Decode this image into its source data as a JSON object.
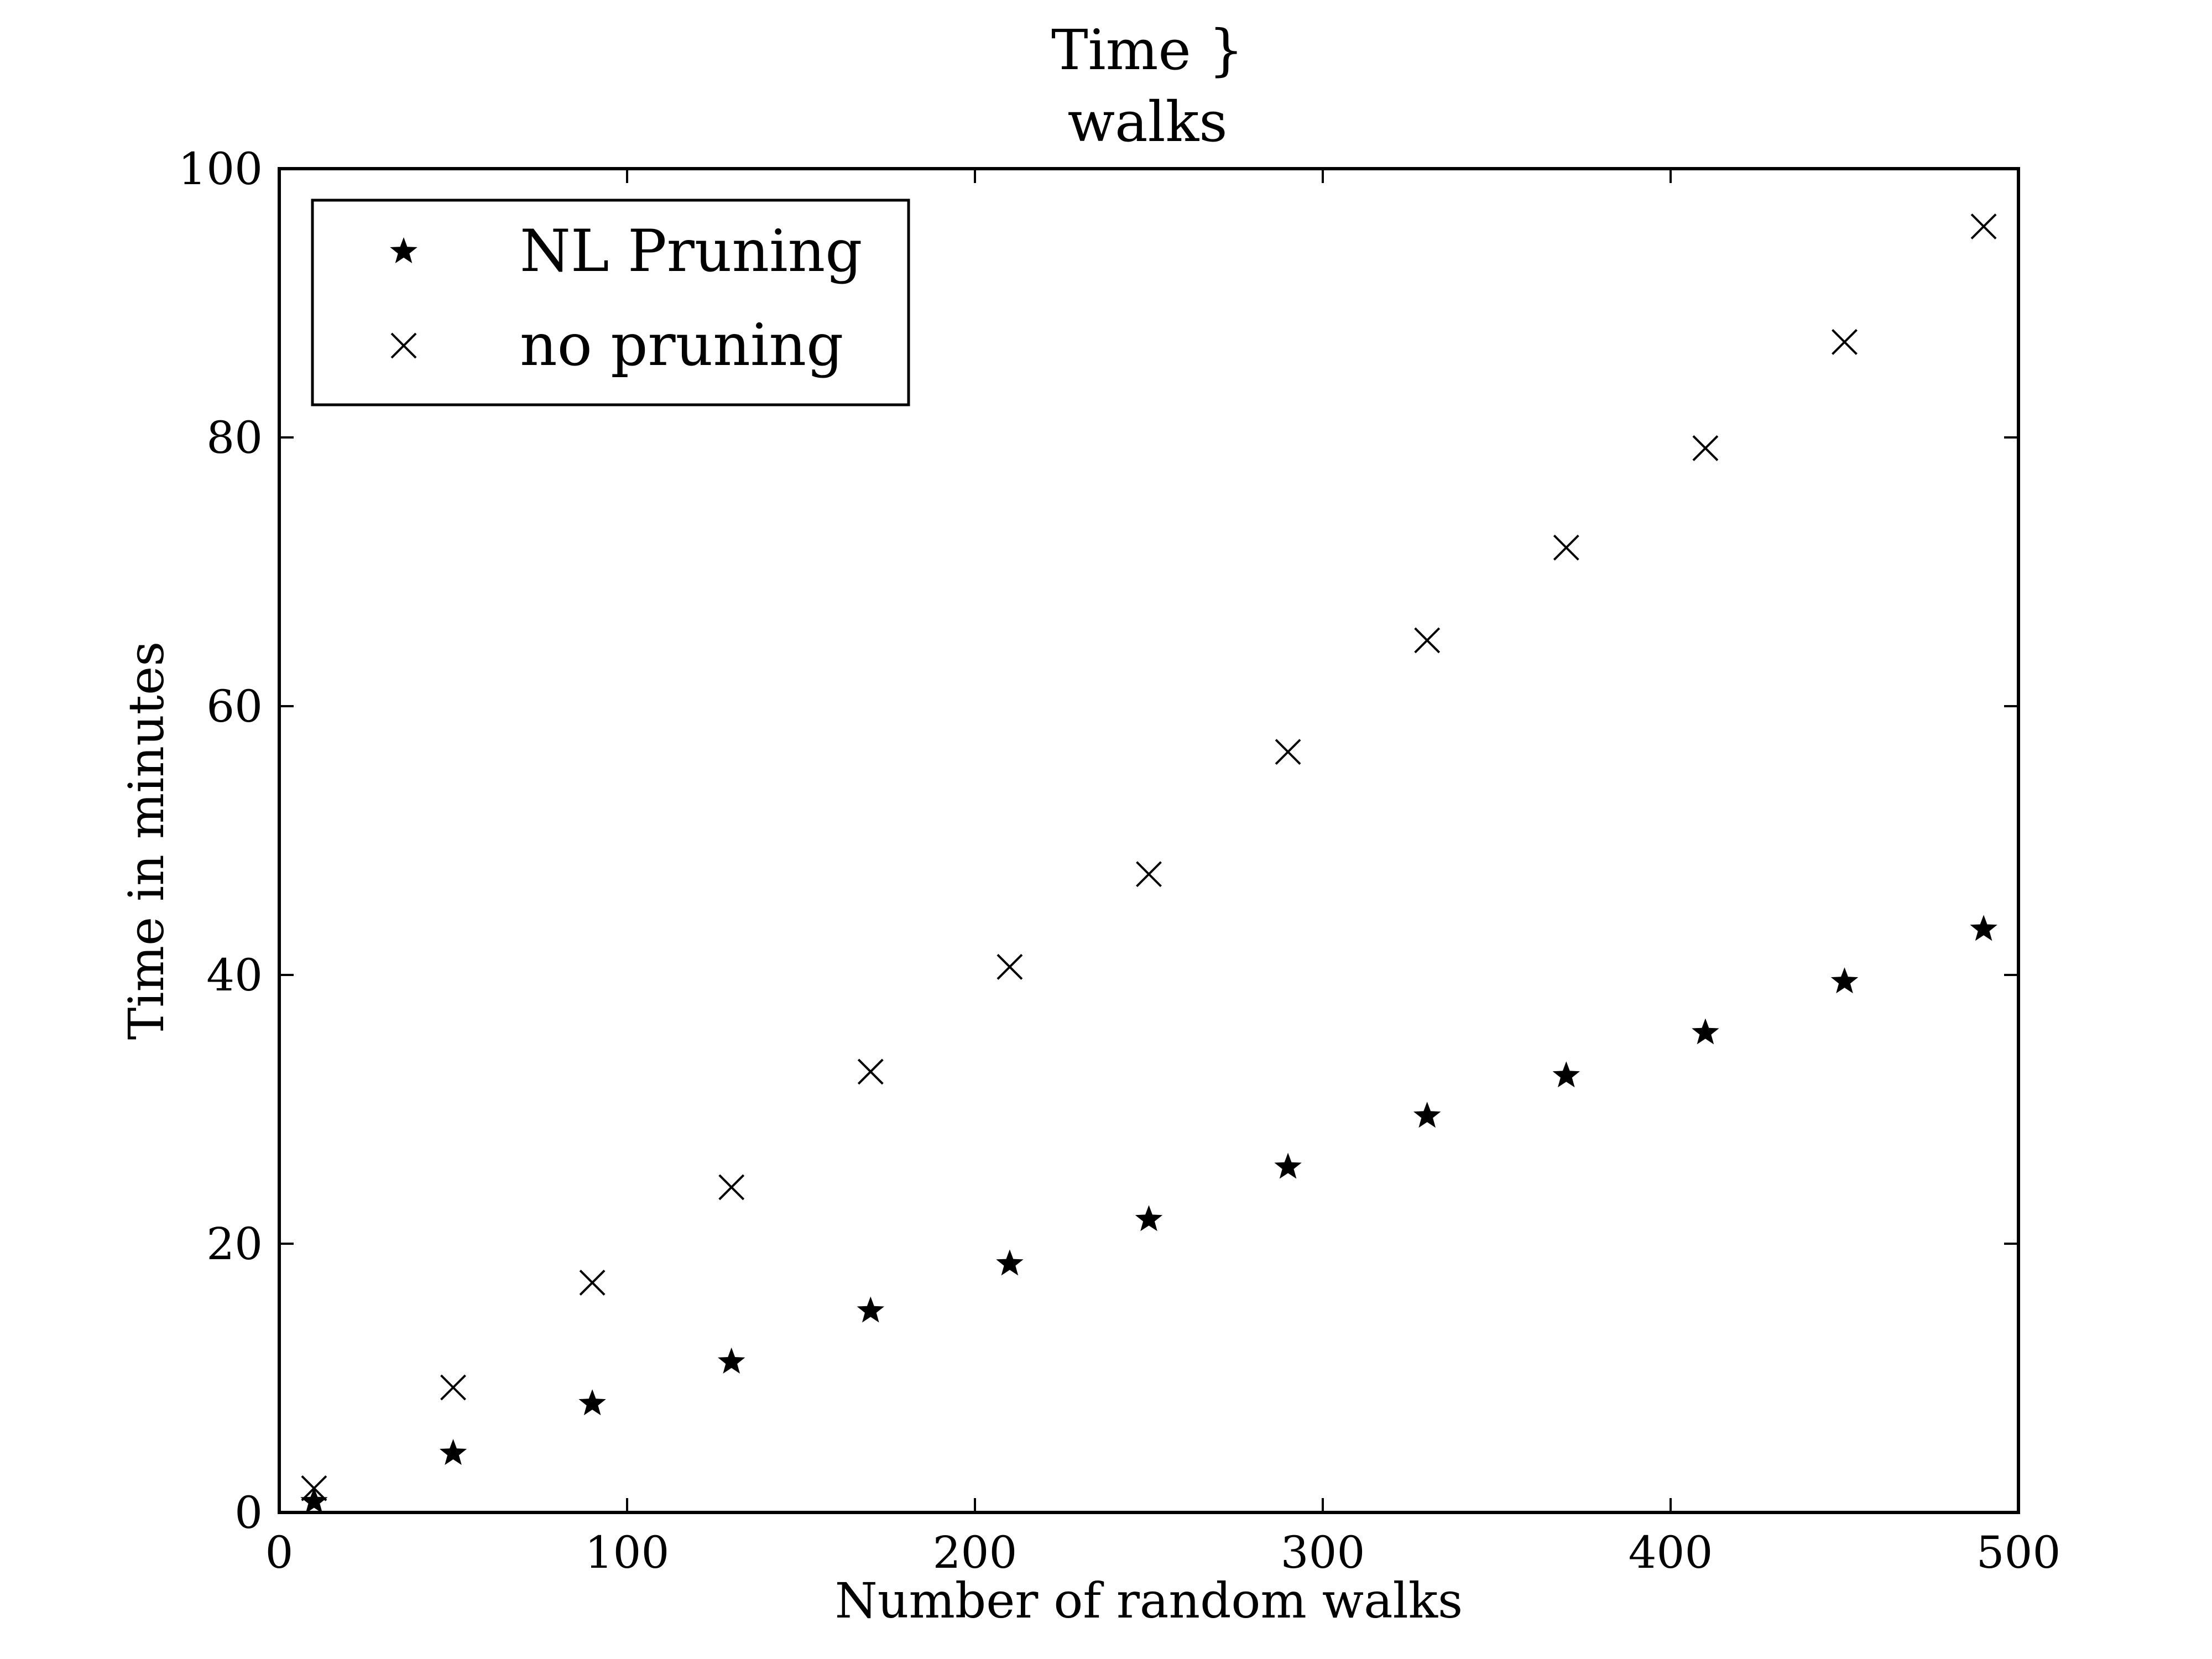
{
  "chart_data": {
    "type": "scatter",
    "title": "Time }\nwalks",
    "xlabel": "Number of random walks",
    "ylabel": "Time in minutes",
    "xlim": [
      0,
      500
    ],
    "ylim": [
      0,
      100
    ],
    "xticks": [
      "0",
      "100",
      "200",
      "300",
      "400",
      "500"
    ],
    "yticks": [
      "0",
      "20",
      "40",
      "60",
      "80",
      "100"
    ],
    "grid": false,
    "legend_position": "top-left",
    "series": [
      {
        "name": "NL Pruning",
        "marker": "star",
        "color": "#000000",
        "x": [
          10,
          50,
          90,
          130,
          170,
          210,
          250,
          290,
          330,
          370,
          410,
          450,
          490
        ],
        "y": [
          0.8,
          4.4,
          8.1,
          11.2,
          15.0,
          18.5,
          21.8,
          25.7,
          29.5,
          32.5,
          35.7,
          39.5,
          43.4
        ]
      },
      {
        "name": "no pruning",
        "marker": "x",
        "color": "#000000",
        "x": [
          10,
          50,
          90,
          130,
          170,
          210,
          250,
          290,
          330,
          370,
          410,
          450,
          490
        ],
        "y": [
          1.8,
          9.3,
          17.1,
          24.2,
          32.8,
          40.6,
          47.5,
          56.6,
          64.9,
          71.8,
          79.2,
          87.1,
          95.7
        ]
      }
    ]
  }
}
